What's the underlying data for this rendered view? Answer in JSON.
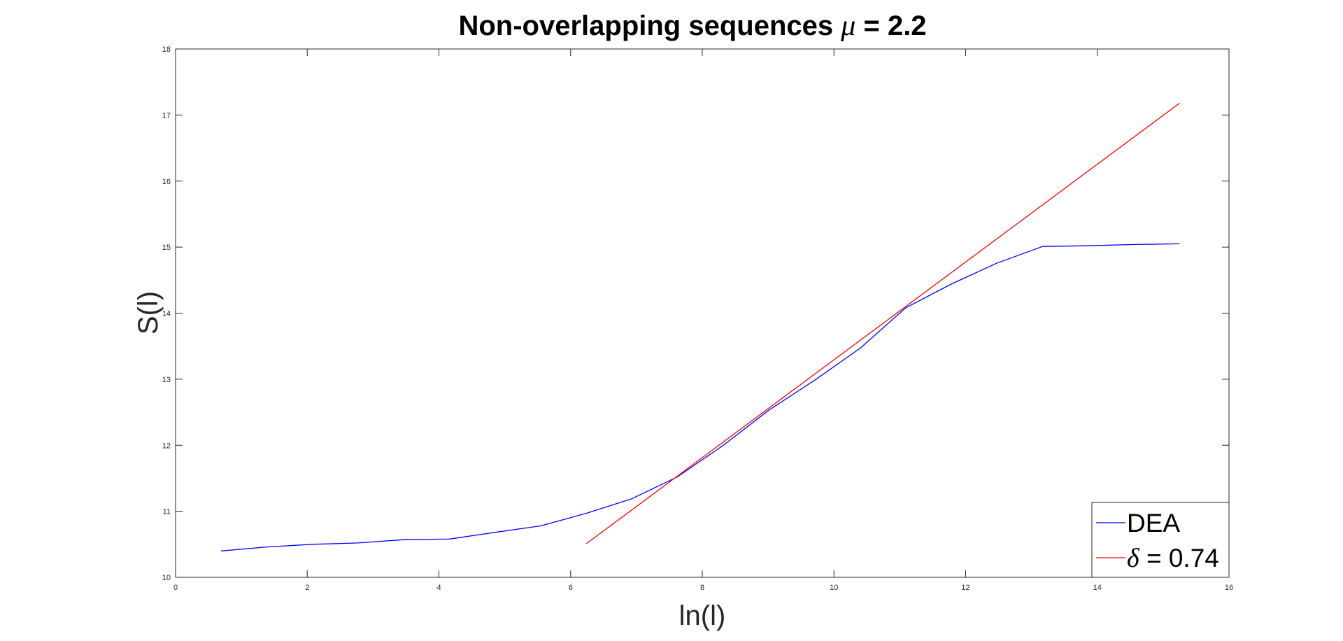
{
  "chart_data": {
    "type": "line",
    "title": "Non-overlapping sequences",
    "title_symbol": "μ",
    "title_value": "= 2.2",
    "xlabel": "ln(l)",
    "ylabel": "S(l)",
    "xlim": [
      0,
      16
    ],
    "ylim": [
      10,
      18
    ],
    "xticks": [
      0,
      2,
      4,
      6,
      8,
      10,
      12,
      14,
      16
    ],
    "yticks": [
      10,
      11,
      12,
      13,
      14,
      15,
      16,
      17,
      18
    ],
    "xtick_labels": [
      "0",
      "2",
      "4",
      "6",
      "8",
      "10",
      "12",
      "14",
      "16"
    ],
    "ytick_labels": [
      "10",
      "11",
      "12",
      "13",
      "14",
      "15",
      "16",
      "17",
      "18"
    ],
    "grid": false,
    "legend_position": "bottom-right",
    "series": [
      {
        "name": "DEA",
        "color": "#0000ff",
        "x": [
          0.69,
          1.39,
          2.08,
          2.77,
          3.47,
          4.16,
          4.85,
          5.55,
          6.24,
          6.93,
          7.62,
          8.32,
          9.01,
          9.7,
          10.4,
          11.09,
          11.78,
          12.48,
          13.17,
          13.86,
          14.56,
          15.25
        ],
        "y": [
          10.4,
          10.46,
          10.5,
          10.52,
          10.57,
          10.58,
          10.68,
          10.78,
          10.97,
          11.19,
          11.52,
          12.0,
          12.53,
          12.98,
          13.47,
          14.08,
          14.44,
          14.76,
          15.01,
          15.02,
          15.04,
          15.05
        ]
      },
      {
        "name": "δ = 0.74",
        "legend_symbol": "δ",
        "legend_rest": "= 0.74",
        "color": "#ff0000",
        "x": [
          6.24,
          15.25
        ],
        "y": [
          10.51,
          17.18
        ]
      }
    ]
  }
}
